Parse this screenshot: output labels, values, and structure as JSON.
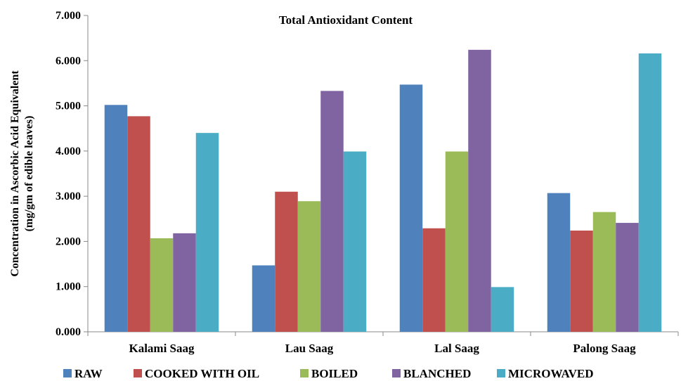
{
  "chart_data": {
    "type": "bar",
    "title": "Total Antioxidant Content",
    "ylabel_lines": [
      "Concentration in Ascorbic Acid Equivalent",
      "(mg/gm of edible leaves)"
    ],
    "xlabel": "",
    "categories": [
      "Kalami Saag",
      "Lau Saag",
      "Lal Saag",
      "Palong Saag"
    ],
    "ylim": [
      0,
      7
    ],
    "yticks": [
      "0.000",
      "1.000",
      "2.000",
      "3.000",
      "4.000",
      "5.000",
      "6.000",
      "7.000"
    ],
    "grid": false,
    "legend_position": "bottom",
    "series": [
      {
        "name": "RAW",
        "color": "#4F81BD",
        "values": [
          5.02,
          1.47,
          5.47,
          3.07
        ]
      },
      {
        "name": "COOKED WITH OIL",
        "color": "#C0504D",
        "values": [
          4.77,
          3.1,
          2.29,
          2.24
        ]
      },
      {
        "name": "BOILED",
        "color": "#9BBB59",
        "values": [
          2.07,
          2.89,
          3.99,
          2.65
        ]
      },
      {
        "name": "BLANCHED",
        "color": "#8064A2",
        "values": [
          2.18,
          5.33,
          6.24,
          2.41
        ]
      },
      {
        "name": "MICROWAVED",
        "color": "#4BACC6",
        "values": [
          4.4,
          3.99,
          0.99,
          6.16
        ]
      }
    ]
  }
}
